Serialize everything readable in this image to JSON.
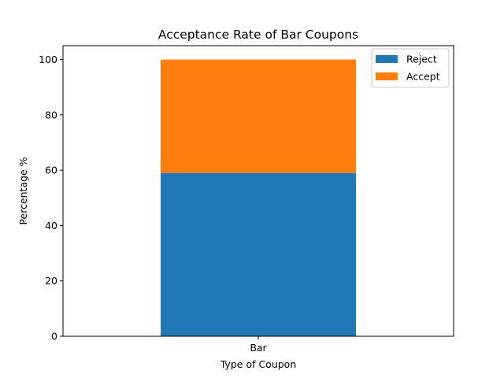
{
  "chart_data": {
    "type": "bar",
    "stacked": true,
    "title": "Acceptance Rate of Bar Coupons",
    "xlabel": "Type of Coupon",
    "ylabel": "Percentage %",
    "categories": [
      "Bar"
    ],
    "series": [
      {
        "name": "Reject",
        "values": [
          59.0
        ],
        "color": "#1f77b4"
      },
      {
        "name": "Accept",
        "values": [
          41.0
        ],
        "color": "#ff7f0e"
      }
    ],
    "ylim": [
      0,
      105
    ],
    "yticks": [
      0,
      20,
      40,
      60,
      80,
      100
    ],
    "grid": false,
    "legend_position": "top-right"
  }
}
